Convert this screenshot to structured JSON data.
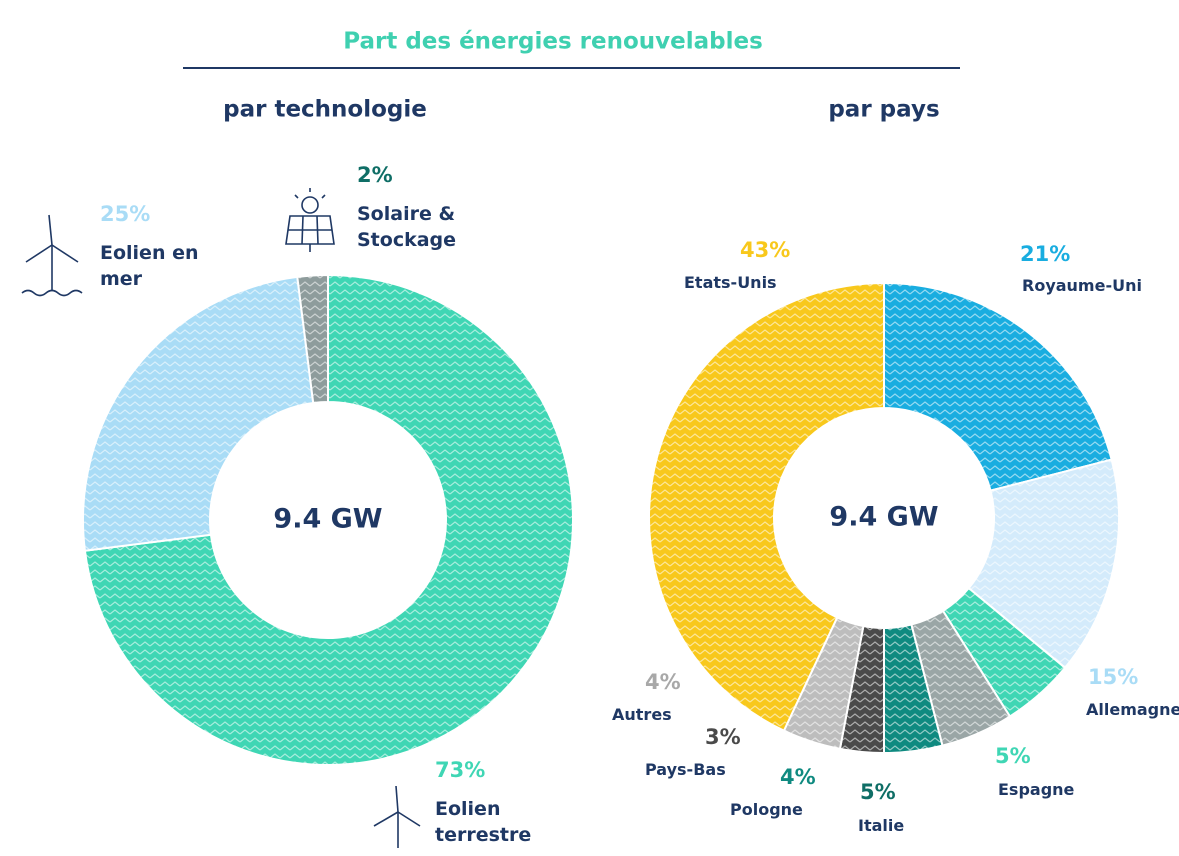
{
  "title": "Part des énergies renouvelables",
  "chart_data": [
    {
      "type": "donut",
      "title": "par technologie",
      "center_label": "9.4 GW",
      "categories": [
        "Eolien terrestre",
        "Eolien en mer",
        "Solaire & Stockage"
      ],
      "values": [
        73,
        25,
        2
      ],
      "value_labels": [
        "73%",
        "25%",
        "2%"
      ],
      "colors": [
        "#3fd6b4",
        "#a9dcf6",
        "#8e9c9c"
      ],
      "label_colors": [
        "#3fd6b4",
        "#a9dcf6",
        "#0f6e66"
      ]
    },
    {
      "type": "donut",
      "title": "par pays",
      "center_label": "9.4 GW",
      "categories": [
        "Royaume-Uni",
        "Allemagne",
        "Espagne",
        "Italie",
        "Pologne",
        "Pays-Bas",
        "Autres",
        "Etats-Unis"
      ],
      "values": [
        21,
        15,
        5,
        5,
        4,
        3,
        4,
        43
      ],
      "value_labels": [
        "21%",
        "15%",
        "5%",
        "5%",
        "4%",
        "3%",
        "4%",
        "43%"
      ],
      "colors": [
        "#19ade0",
        "#d4ebfb",
        "#3fd6b4",
        "#9aa6a6",
        "#0f8a80",
        "#4a4a4a",
        "#bdbdbd",
        "#f8c81c"
      ],
      "label_colors": [
        "#19ade0",
        "#a9dcf6",
        "#3fd6b4",
        "#0f6e66",
        "#0f8a80",
        "#4a4a4a",
        "#a8a8a8",
        "#f8c81c"
      ]
    }
  ]
}
